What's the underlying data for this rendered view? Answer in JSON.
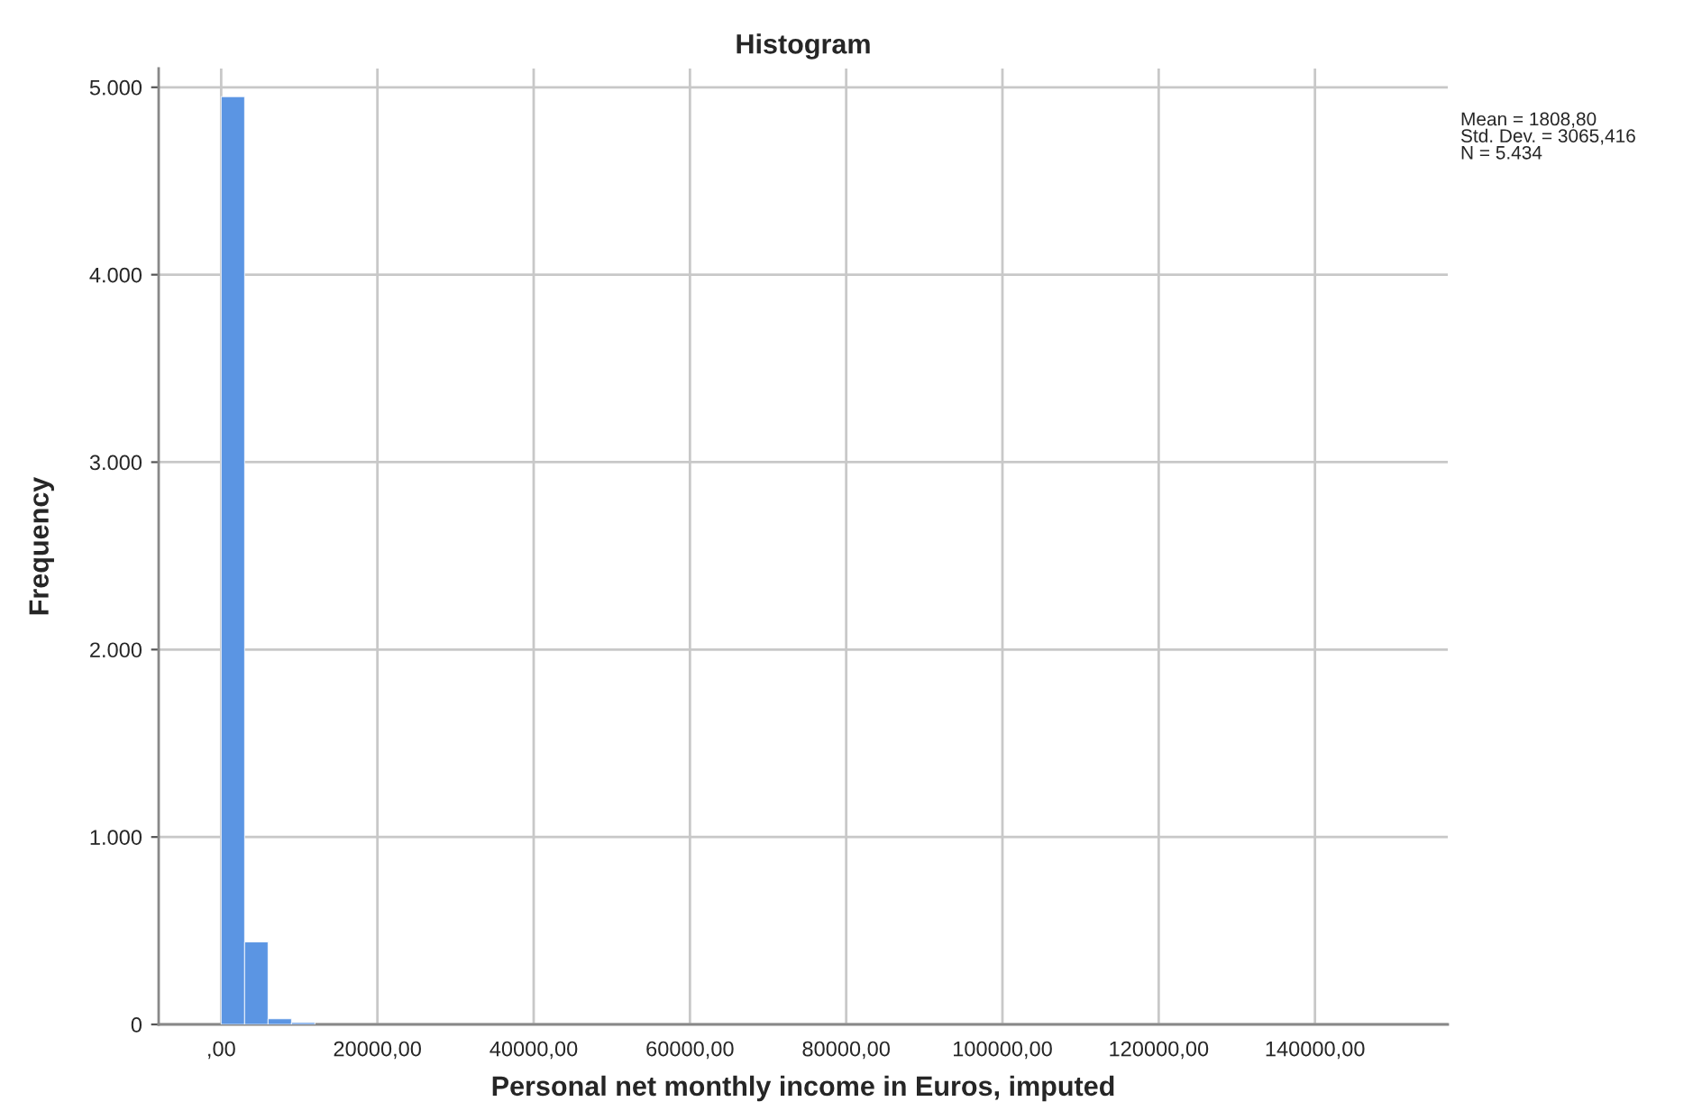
{
  "chart_data": {
    "type": "histogram",
    "title": "Histogram",
    "xlabel": "Personal net monthly income in Euros, imputed",
    "ylabel": "Frequency",
    "bins": [
      0,
      3000,
      6000,
      9000,
      12000
    ],
    "values": [
      4950,
      440,
      30,
      10
    ],
    "color": "#5b95e3",
    "xlim": [
      -8000,
      157000
    ],
    "xticks": [
      {
        "value": 0,
        "label": ",00"
      },
      {
        "value": 20000,
        "label": "20000,00"
      },
      {
        "value": 40000,
        "label": "40000,00"
      },
      {
        "value": 60000,
        "label": "60000,00"
      },
      {
        "value": 80000,
        "label": "80000,00"
      },
      {
        "value": 100000,
        "label": "100000,00"
      },
      {
        "value": 120000,
        "label": "120000,00"
      },
      {
        "value": 140000,
        "label": "140000,00"
      }
    ],
    "ylim": [
      0,
      5100
    ],
    "yticks": [
      {
        "value": 0,
        "label": "0"
      },
      {
        "value": 1000,
        "label": "1.000"
      },
      {
        "value": 2000,
        "label": "2.000"
      },
      {
        "value": 3000,
        "label": "3.000"
      },
      {
        "value": 4000,
        "label": "4.000"
      },
      {
        "value": 5000,
        "label": "5.000"
      }
    ],
    "grid": true,
    "annotations": [
      "Mean = 1808,80\nStd. Dev. = 3065,416\nN = 5.434"
    ]
  }
}
